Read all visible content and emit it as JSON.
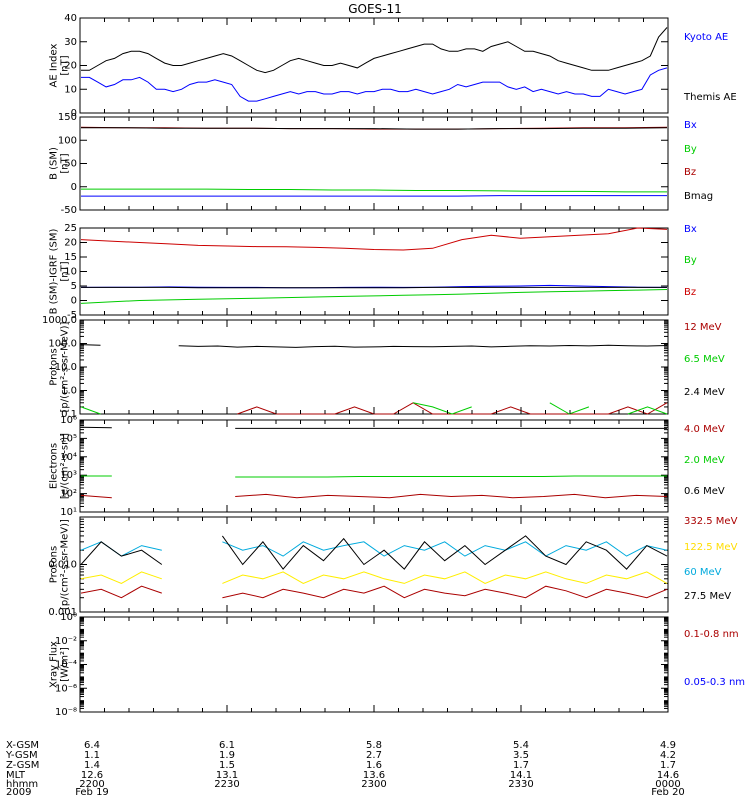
{
  "title": "GOES-11",
  "chart_data": [
    {
      "type": "line",
      "ylabel": "AE Index\n[nT]",
      "yscale": "linear",
      "ylim": [
        0,
        40
      ],
      "yticks": [
        0,
        10,
        20,
        30,
        40
      ],
      "series": [
        {
          "name": "Kyoto AE",
          "color": "#0000ff",
          "values": [
            15,
            15,
            13,
            11,
            12,
            14,
            14,
            15,
            13,
            10,
            10,
            9,
            10,
            12,
            13,
            13,
            14,
            13,
            12,
            7,
            5,
            5,
            6,
            7,
            8,
            9,
            8,
            9,
            9,
            8,
            8,
            9,
            9,
            8,
            9,
            9,
            10,
            10,
            9,
            9,
            10,
            9,
            8,
            9,
            10,
            12,
            11,
            12,
            13,
            13,
            13,
            11,
            10,
            11,
            9,
            10,
            9,
            8,
            9,
            8,
            8,
            7,
            7,
            10,
            9,
            8,
            9,
            10,
            16,
            18,
            19
          ]
        },
        {
          "name": "Themis AE",
          "color": "#000000",
          "values": [
            18,
            18,
            20,
            22,
            23,
            25,
            26,
            26,
            25,
            23,
            21,
            20,
            20,
            21,
            22,
            23,
            24,
            25,
            24,
            22,
            20,
            18,
            17,
            18,
            20,
            22,
            23,
            22,
            21,
            20,
            20,
            21,
            20,
            19,
            21,
            23,
            24,
            25,
            26,
            27,
            28,
            29,
            29,
            27,
            26,
            26,
            27,
            27,
            26,
            28,
            29,
            30,
            28,
            26,
            26,
            25,
            24,
            22,
            21,
            20,
            19,
            18,
            18,
            18,
            19,
            20,
            21,
            22,
            24,
            32,
            36
          ]
        }
      ]
    },
    {
      "type": "line",
      "ylabel": "B (SM)\n[nT]",
      "yscale": "linear",
      "ylim": [
        -50,
        150
      ],
      "yticks": [
        -50,
        0,
        50,
        100,
        150
      ],
      "series": [
        {
          "name": "Bx",
          "color": "#0000ff",
          "values": [
            -20,
            -20,
            -20,
            -20,
            -20,
            -20,
            -20,
            -20,
            -20,
            -20,
            -19,
            -19,
            -19,
            -19,
            -19
          ]
        },
        {
          "name": "By",
          "color": "#00cc00",
          "values": [
            -5,
            -5,
            -5,
            -5,
            -6,
            -6,
            -7,
            -7,
            -8,
            -8,
            -9,
            -10,
            -10,
            -11,
            -11
          ]
        },
        {
          "name": "Bz",
          "color": "#aa0000",
          "values": [
            128,
            127,
            127,
            126,
            126,
            125,
            125,
            124,
            124,
            124,
            125,
            126,
            127,
            127,
            128
          ]
        },
        {
          "name": "Bmag",
          "color": "#000000",
          "values": [
            127,
            127,
            126,
            126,
            126,
            125,
            125,
            125,
            124,
            124,
            125,
            125,
            126,
            126,
            127
          ]
        }
      ]
    },
    {
      "type": "line",
      "ylabel": "B (SM)-IGRF (SM)\n[nT]",
      "yscale": "linear",
      "ylim": [
        -5,
        25
      ],
      "yticks": [
        -5,
        0,
        5,
        10,
        15,
        20,
        25
      ],
      "series": [
        {
          "name": "Bx",
          "color": "#0000ff",
          "values": [
            4.5,
            4.6,
            4.6,
            4.7,
            4.6,
            4.5,
            4.5,
            4.4,
            4.4,
            4.5,
            4.6,
            4.5,
            4.6,
            4.8,
            4.9,
            5.0,
            5.2,
            5.0,
            4.8,
            4.6,
            4.5
          ]
        },
        {
          "name": "By",
          "color": "#00cc00",
          "values": [
            -1.0,
            -0.5,
            0.0,
            0.2,
            0.4,
            0.6,
            0.8,
            1.0,
            1.2,
            1.4,
            1.6,
            1.8,
            2.0,
            2.2,
            2.5,
            2.8,
            3.0,
            3.2,
            3.4,
            3.6,
            3.8
          ]
        },
        {
          "name": "Bz",
          "color": "#cc0000",
          "values": [
            21,
            20.5,
            20,
            19.5,
            19,
            18.8,
            18.6,
            18.5,
            18.3,
            18.0,
            17.6,
            17.4,
            18,
            21,
            22.5,
            21.5,
            22,
            22.5,
            23,
            25,
            24.5
          ]
        },
        {
          "name": "",
          "color": "#000000",
          "values": [
            4.5,
            4.5,
            4.5,
            4.5,
            4.4,
            4.4,
            4.4,
            4.4,
            4.4,
            4.4,
            4.4,
            4.4,
            4.5,
            4.5,
            4.5,
            4.5,
            4.5,
            4.5,
            4.5,
            4.5,
            4.5
          ]
        }
      ]
    },
    {
      "type": "line",
      "ylabel": "Protons\n[p/(cm²-s-sr-MeV)]",
      "yscale": "log",
      "ylim": [
        0.1,
        1000
      ],
      "yticks": [
        0.1,
        1.0,
        10.0,
        100.0,
        1000.0
      ],
      "ytick_labels": [
        "0.1",
        "1.0",
        "10.0",
        "100.0",
        "1000.0"
      ],
      "series": [
        {
          "name": "12 MeV",
          "color": "#aa0000",
          "values": [
            null,
            null,
            null,
            null,
            null,
            null,
            null,
            null,
            0.1,
            0.2,
            0.1,
            0.1,
            0.1,
            0.1,
            0.2,
            0.1,
            0.1,
            0.3,
            0.1,
            0.1,
            0.1,
            0.1,
            0.2,
            0.1,
            0.1,
            0.1,
            0.1,
            0.1,
            0.2,
            0.1,
            0.3
          ]
        },
        {
          "name": "6.5 MeV",
          "color": "#00cc00",
          "values": [
            0.2,
            0.1,
            null,
            null,
            null,
            null,
            null,
            null,
            null,
            null,
            0.1,
            null,
            null,
            null,
            null,
            null,
            null,
            0.3,
            0.2,
            0.1,
            0.2,
            null,
            null,
            null,
            0.3,
            0.1,
            0.2,
            null,
            0.1,
            0.2,
            0.1
          ]
        },
        {
          "name": "2.4 MeV",
          "color": "#000000",
          "values": [
            90,
            85,
            null,
            null,
            null,
            80,
            75,
            78,
            70,
            75,
            72,
            68,
            74,
            76,
            70,
            72,
            75,
            74,
            73,
            75,
            78,
            72,
            76,
            80,
            78,
            82,
            79,
            85,
            80,
            78,
            82
          ]
        }
      ]
    },
    {
      "type": "line",
      "ylabel": "Electrons\n[e/(cm²-s-sr)]",
      "yscale": "log",
      "ylim": [
        10,
        1000000
      ],
      "yticks": [
        10,
        100,
        1000,
        10000,
        100000,
        1000000
      ],
      "ytick_labels": [
        "10¹",
        "10²",
        "10³",
        "10⁴",
        "10⁵",
        "10⁶"
      ],
      "series": [
        {
          "name": "4.0 MeV",
          "color": "#aa0000",
          "values": [
            80,
            60,
            null,
            null,
            null,
            70,
            90,
            60,
            80,
            70,
            60,
            90,
            70,
            80,
            60,
            70,
            90,
            60,
            80,
            70
          ]
        },
        {
          "name": "2.0 MeV",
          "color": "#00cc00",
          "values": [
            900,
            900,
            null,
            null,
            null,
            800,
            800,
            800,
            800,
            850,
            850,
            850,
            850,
            850,
            850,
            850,
            900,
            900,
            900,
            900
          ]
        },
        {
          "name": "0.6 MeV",
          "color": "#000000",
          "values": [
            400000,
            380000,
            null,
            null,
            null,
            350000,
            350000,
            350000,
            350000,
            350000,
            350000,
            350000,
            350000,
            350000,
            350000,
            350000,
            350000,
            350000,
            350000,
            350000
          ]
        }
      ]
    },
    {
      "type": "line",
      "ylabel": "Protons\n[p/(cm²-s-sr-MeV)]",
      "yscale": "log",
      "ylim": [
        0.001,
        0.1
      ],
      "yticks": [
        0.001,
        0.01
      ],
      "ytick_labels": [
        "0.001",
        "0.010"
      ],
      "series": [
        {
          "name": "332.5 MeV",
          "color": "#aa0000",
          "values": [
            0.0025,
            0.003,
            0.002,
            0.0035,
            0.0025,
            null,
            null,
            0.002,
            0.0025,
            0.002,
            0.003,
            0.0025,
            0.002,
            0.003,
            0.0025,
            0.0035,
            0.002,
            0.003,
            0.0025,
            0.0022,
            0.003,
            0.0025,
            0.002,
            0.0035,
            0.0028,
            0.002,
            0.003,
            0.0025,
            0.002,
            0.003
          ]
        },
        {
          "name": "122.5 MeV",
          "color": "#ffee00",
          "values": [
            0.005,
            0.006,
            0.004,
            0.007,
            0.005,
            null,
            null,
            0.004,
            0.006,
            0.005,
            0.007,
            0.004,
            0.006,
            0.005,
            0.007,
            0.005,
            0.004,
            0.006,
            0.005,
            0.007,
            0.004,
            0.006,
            0.005,
            0.007,
            0.005,
            0.004,
            0.006,
            0.005,
            0.007,
            0.004
          ]
        },
        {
          "name": "60 MeV",
          "color": "#00aadd",
          "values": [
            0.02,
            0.03,
            0.015,
            0.025,
            0.02,
            null,
            null,
            0.03,
            0.02,
            0.025,
            0.015,
            0.03,
            0.02,
            0.025,
            0.03,
            0.015,
            0.025,
            0.02,
            0.03,
            0.015,
            0.025,
            0.02,
            0.03,
            0.015,
            0.025,
            0.02,
            0.03,
            0.015,
            0.025,
            0.02
          ]
        },
        {
          "name": "27.5 MeV",
          "color": "#000000",
          "values": [
            0.01,
            0.03,
            0.015,
            0.02,
            0.01,
            null,
            null,
            0.04,
            0.01,
            0.03,
            0.008,
            0.025,
            0.012,
            0.035,
            0.01,
            0.02,
            0.008,
            0.03,
            0.012,
            0.025,
            0.01,
            0.02,
            0.04,
            0.015,
            0.01,
            0.03,
            0.02,
            0.008,
            0.025,
            0.015
          ]
        }
      ]
    },
    {
      "type": "line",
      "ylabel": "Xray Flux\n[W/m²]",
      "yscale": "log",
      "ylim": [
        1e-08,
        1
      ],
      "yticks": [
        1e-08,
        1e-06,
        0.0001,
        0.01,
        1
      ],
      "ytick_labels": [
        "10⁻⁸",
        "10⁻⁶",
        "10⁻⁴",
        "10⁻²",
        "10⁰"
      ],
      "series": [
        {
          "name": "0.1-0.8 nm",
          "color": "#aa0000",
          "values": []
        },
        {
          "name": "0.05-0.3 nm",
          "color": "#0000ff",
          "values": []
        }
      ]
    }
  ],
  "xaxis": {
    "row_labels": [
      "X-GSM",
      "Y-GSM",
      "Z-GSM",
      "MLT",
      "hhmm",
      "2009"
    ],
    "columns": [
      [
        "6.4",
        "1.1",
        "1.4",
        "12.6",
        "2200",
        "Feb 19"
      ],
      [
        "6.1",
        "1.9",
        "1.5",
        "13.1",
        "2230",
        ""
      ],
      [
        "5.8",
        "2.7",
        "1.6",
        "13.6",
        "2300",
        ""
      ],
      [
        "5.4",
        "3.5",
        "1.7",
        "14.1",
        "2330",
        ""
      ],
      [
        "4.9",
        "4.2",
        "1.7",
        "14.6",
        "0000",
        "Feb 20"
      ]
    ]
  },
  "colors": {
    "frame": "#000000",
    "background": "#ffffff"
  }
}
